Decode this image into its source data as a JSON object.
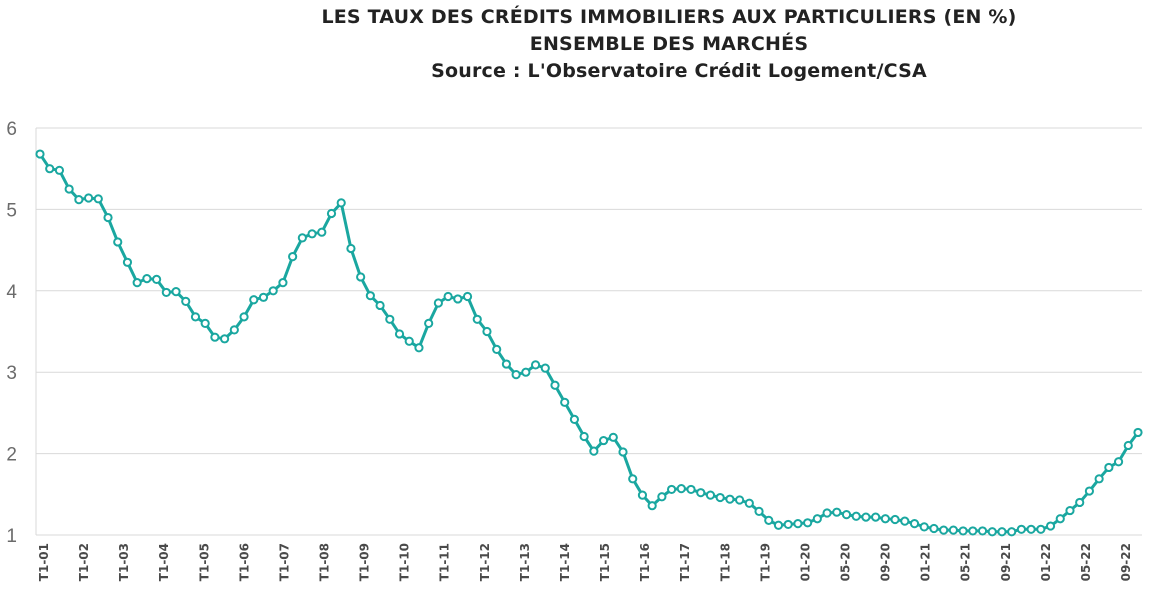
{
  "chart_data": {
    "type": "line",
    "title": "LES TAUX DES CRÉDITS IMMOBILIERS AUX PARTICULIERS (EN %)",
    "subtitle": "ENSEMBLE DES MARCHÉS",
    "source": "Source : L'Observatoire Crédit Logement/CSA",
    "ylim": [
      1,
      6
    ],
    "yticks": [
      "1",
      "2",
      "3",
      "4",
      "5",
      "6"
    ],
    "grid": true,
    "line_color": "#1aa7a0",
    "x_tick_labels": [
      "T1-01",
      "T1-02",
      "T1-03",
      "T1-04",
      "T1-05",
      "T1-06",
      "T1-07",
      "T1-08",
      "T1-09",
      "T1-10",
      "T1-11",
      "T1-12",
      "T1-13",
      "T1-14",
      "T1-15",
      "T1-16",
      "T1-17",
      "T1-18",
      "T1-19",
      "01-20",
      "05-20",
      "09-20",
      "01-21",
      "05-21",
      "09-21",
      "01-22",
      "05-22",
      "09-22"
    ],
    "series": [
      {
        "values": [
          5.68,
          5.5,
          5.48,
          5.25,
          5.12,
          5.14,
          5.13,
          4.9,
          4.6,
          4.35,
          4.1,
          4.15,
          4.14,
          3.98,
          3.99,
          3.87,
          3.68,
          3.6,
          3.43,
          3.41,
          3.52,
          3.68,
          3.89,
          3.92,
          4.0,
          4.1,
          4.42,
          4.65,
          4.7,
          4.72,
          4.95,
          5.08,
          4.52,
          4.17,
          3.94,
          3.82,
          3.65,
          3.47,
          3.38,
          3.3,
          3.6,
          3.85,
          3.93,
          3.9,
          3.93,
          3.65,
          3.5,
          3.28,
          3.1,
          2.97,
          3.0,
          3.09,
          3.05,
          2.84,
          2.63,
          2.42,
          2.21,
          2.03,
          2.16,
          2.2,
          2.02,
          1.69,
          1.49,
          1.36,
          1.47,
          1.56,
          1.57,
          1.56,
          1.52,
          1.49,
          1.46,
          1.44,
          1.43,
          1.39,
          1.29,
          1.18,
          1.12,
          1.13,
          1.14,
          1.15,
          1.2,
          1.27,
          1.28,
          1.25,
          1.23,
          1.22,
          1.22,
          1.2,
          1.19,
          1.17,
          1.14,
          1.1,
          1.08,
          1.06,
          1.06,
          1.05,
          1.05,
          1.05,
          1.04,
          1.04,
          1.04,
          1.07,
          1.07,
          1.07,
          1.11,
          1.2,
          1.3,
          1.4,
          1.54,
          1.69,
          1.83,
          1.9,
          2.1,
          2.26
        ]
      }
    ]
  }
}
